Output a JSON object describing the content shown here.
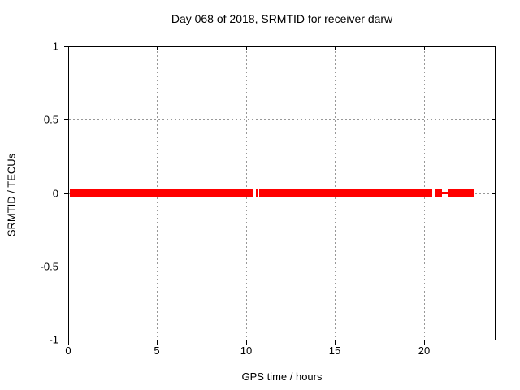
{
  "title": "Day 068 of 2018, SRMTID for receiver darw",
  "chart_data": {
    "type": "scatter",
    "title": "Day 068 of 2018, SRMTID for receiver darw",
    "xlabel": "GPS time / hours",
    "ylabel": "SRMTID / TECUs",
    "xlim": [
      0,
      24
    ],
    "ylim": [
      -1,
      1
    ],
    "x_ticks": [
      0,
      5,
      10,
      15,
      20
    ],
    "x_tick_labels": [
      "0",
      "5",
      "10",
      "15",
      "20"
    ],
    "y_ticks": [
      1,
      0.5,
      0,
      -0.5,
      -1
    ],
    "y_tick_labels": [
      "1",
      "0.5",
      "0",
      "-0.5",
      "-1"
    ],
    "grid": true,
    "legend": "none",
    "background_color": "#ffffff",
    "grid_color": "#989898",
    "axis_color": "#000000",
    "series": [
      {
        "name": "SRMTID",
        "color": "#ff0000",
        "marker": "filled-square-band",
        "y_value": 0,
        "band_segments_hours": [
          [
            0.09,
            10.42
          ],
          [
            10.56,
            10.65
          ],
          [
            10.74,
            20.48
          ],
          [
            20.62,
            21.03
          ],
          [
            21.35,
            22.86
          ]
        ],
        "thin_line_segments_hours": [
          [
            21.03,
            21.35
          ]
        ],
        "data_gaps_hours": [
          [
            10.42,
            10.56
          ],
          [
            10.65,
            10.74
          ],
          [
            20.48,
            20.62
          ]
        ]
      }
    ]
  }
}
